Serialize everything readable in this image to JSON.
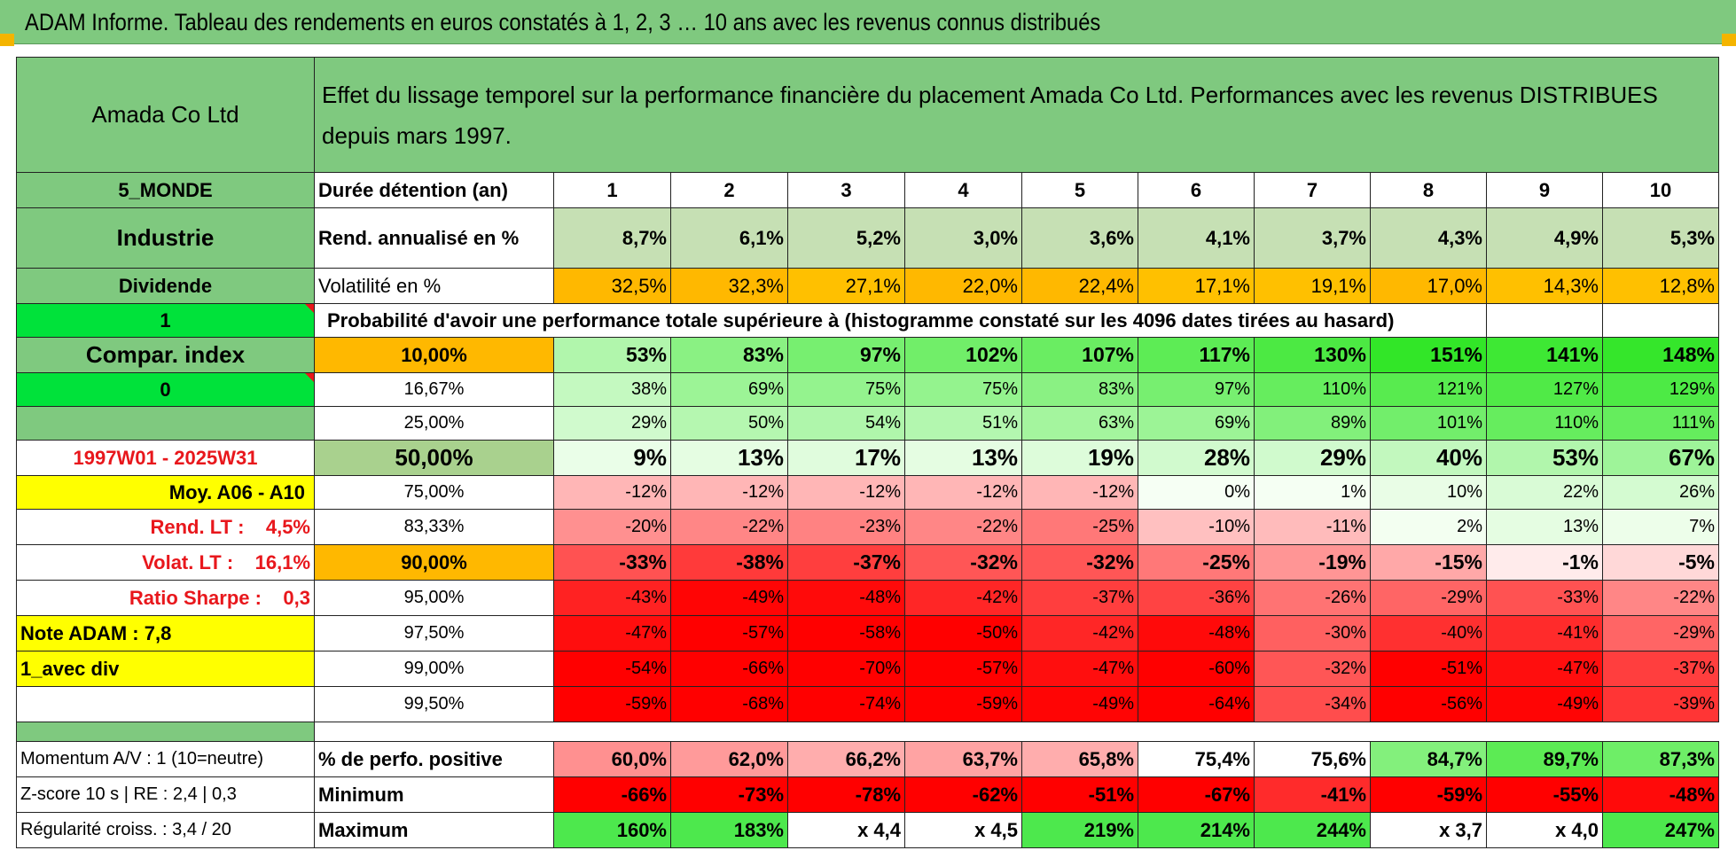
{
  "title": "ADAM Informe. Tableau des rendements en euros constatés à 1, 2, 3 … 10 ans avec les revenus connus distribués",
  "left": {
    "name": "Amada Co Ltd",
    "zone": "5_MONDE",
    "sector": "Industrie",
    "dividend": "Dividende",
    "flag1": "1",
    "compar": "Compar. index",
    "flag2": "0",
    "period": "1997W01 - 2025W31",
    "moy": "Moy. A06 - A10",
    "rend_lt": "Rend. LT :    4,5%",
    "volat_lt": "Volat. LT :    16,1%",
    "sharpe": "Ratio Sharpe :    0,3",
    "note": "Note ADAM : 7,8",
    "avec_div": "1_avec div",
    "momentum": "Momentum A/V : 1 (10=neutre)",
    "zscore": "Z-score 10 s | RE : 2,4 | 0,3",
    "regularite": "Régularité croiss. : 3,4 / 20"
  },
  "header": {
    "text": "Effet du lissage temporel sur la performance financière du placement Amada Co Ltd. Performances avec les revenus DISTRIBUES depuis mars 1997."
  },
  "duration": {
    "label": "Durée détention (an)",
    "years": [
      "1",
      "2",
      "3",
      "4",
      "5",
      "6",
      "7",
      "8",
      "9",
      "10"
    ]
  },
  "rend": {
    "label": "Rend. annualisé en %",
    "values": [
      "8,7%",
      "6,1%",
      "5,2%",
      "3,0%",
      "3,6%",
      "4,1%",
      "3,7%",
      "4,3%",
      "4,9%",
      "5,3%"
    ]
  },
  "vol": {
    "label": "Volatilité en %",
    "values": [
      "32,5%",
      "32,3%",
      "27,1%",
      "22,0%",
      "22,4%",
      "17,1%",
      "19,1%",
      "17,0%",
      "14,3%",
      "12,8%"
    ]
  },
  "prob_title": "Probabilité d'avoir une performance totale supérieure à (histogramme constaté sur les 4096 dates tirées au hasard)",
  "prob_rows": [
    {
      "p": "10,00%",
      "values": [
        "53%",
        "83%",
        "97%",
        "102%",
        "107%",
        "117%",
        "130%",
        "151%",
        "141%",
        "148%"
      ]
    },
    {
      "p": "16,67%",
      "values": [
        "38%",
        "69%",
        "75%",
        "75%",
        "83%",
        "97%",
        "110%",
        "121%",
        "127%",
        "129%"
      ]
    },
    {
      "p": "25,00%",
      "values": [
        "29%",
        "50%",
        "54%",
        "51%",
        "63%",
        "69%",
        "89%",
        "101%",
        "110%",
        "111%"
      ]
    },
    {
      "p": "50,00%",
      "values": [
        "9%",
        "13%",
        "17%",
        "13%",
        "19%",
        "28%",
        "29%",
        "40%",
        "53%",
        "67%"
      ]
    },
    {
      "p": "75,00%",
      "values": [
        "-12%",
        "-12%",
        "-12%",
        "-12%",
        "-12%",
        "0%",
        "1%",
        "10%",
        "22%",
        "26%"
      ]
    },
    {
      "p": "83,33%",
      "values": [
        "-20%",
        "-22%",
        "-23%",
        "-22%",
        "-25%",
        "-10%",
        "-11%",
        "2%",
        "13%",
        "7%"
      ]
    },
    {
      "p": "90,00%",
      "values": [
        "-33%",
        "-38%",
        "-37%",
        "-32%",
        "-32%",
        "-25%",
        "-19%",
        "-15%",
        "-1%",
        "-5%"
      ]
    },
    {
      "p": "95,00%",
      "values": [
        "-43%",
        "-49%",
        "-48%",
        "-42%",
        "-37%",
        "-36%",
        "-26%",
        "-29%",
        "-33%",
        "-22%"
      ]
    },
    {
      "p": "97,50%",
      "values": [
        "-47%",
        "-57%",
        "-58%",
        "-50%",
        "-42%",
        "-48%",
        "-30%",
        "-40%",
        "-41%",
        "-29%"
      ]
    },
    {
      "p": "99,00%",
      "values": [
        "-54%",
        "-66%",
        "-70%",
        "-57%",
        "-47%",
        "-60%",
        "-32%",
        "-51%",
        "-47%",
        "-37%"
      ]
    },
    {
      "p": "99,50%",
      "values": [
        "-59%",
        "-68%",
        "-74%",
        "-59%",
        "-49%",
        "-64%",
        "-34%",
        "-56%",
        "-49%",
        "-39%"
      ]
    }
  ],
  "pos": {
    "label": "% de perfo. positive",
    "values": [
      "60,0%",
      "62,0%",
      "66,2%",
      "63,7%",
      "65,8%",
      "75,4%",
      "75,6%",
      "84,7%",
      "89,7%",
      "87,3%"
    ]
  },
  "min": {
    "label": "Minimum",
    "values": [
      "-66%",
      "-73%",
      "-78%",
      "-62%",
      "-51%",
      "-67%",
      "-41%",
      "-59%",
      "-55%",
      "-48%"
    ]
  },
  "max": {
    "label": "Maximum",
    "values": [
      "160%",
      "183%",
      "x 4,4",
      "x 4,5",
      "219%",
      "214%",
      "244%",
      "x 3,7",
      "x 4,0",
      "247%"
    ]
  },
  "colors": {
    "header_green": "#7fc97f",
    "lime": "#00e23a",
    "yellow": "#ffff00",
    "orange": "#ffb800",
    "label_red": "#e8171c"
  }
}
